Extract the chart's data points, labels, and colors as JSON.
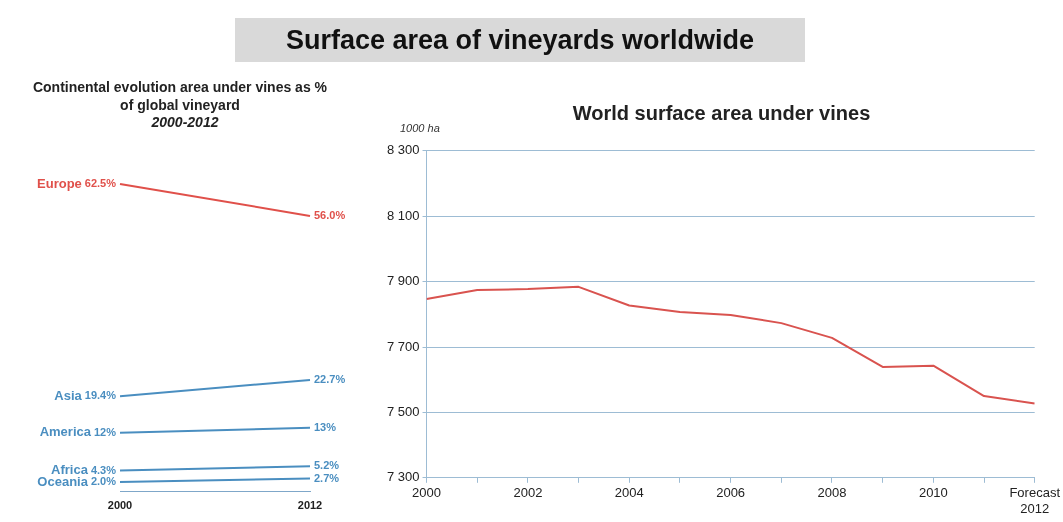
{
  "chart_data": [
    {
      "type": "other",
      "title": "Surface area of vineyards worldwide"
    },
    {
      "type": "line",
      "title": "Continental evolution  area under vines as % of global vineyard",
      "subtitle": "2000-2012",
      "categories": [
        "2000",
        "2012"
      ],
      "tick_labels": "x",
      "grid": false,
      "legend": false,
      "marker": "none",
      "series": [
        {
          "name": "Europe",
          "color": "#e0504a",
          "values": [
            62.5,
            56.0
          ],
          "value_labels": [
            "62.5%",
            "56.0%"
          ]
        },
        {
          "name": "Asia",
          "color": "#4a8ec0",
          "values": [
            19.4,
            22.7
          ],
          "value_labels": [
            "19.4%",
            "22.7%"
          ]
        },
        {
          "name": "America",
          "color": "#4a8ec0",
          "values": [
            12,
            13
          ],
          "value_labels": [
            "12%",
            "13%"
          ]
        },
        {
          "name": "Africa",
          "color": "#4a8ec0",
          "values": [
            4.3,
            5.2
          ],
          "value_labels": [
            "4.3%",
            "5.2%"
          ]
        },
        {
          "name": "Oceania",
          "color": "#4a8ec0",
          "values": [
            2.0,
            2.7
          ],
          "value_labels": [
            "2.0%",
            "2.7%"
          ]
        }
      ]
    },
    {
      "type": "line",
      "title": "World surface area under vines",
      "ylabel": "1000 ha",
      "x": [
        2000,
        2001,
        2002,
        2003,
        2004,
        2005,
        2006,
        2007,
        2008,
        2009,
        2010,
        2011,
        2012
      ],
      "values": [
        7847,
        7874,
        7877,
        7884,
        7827,
        7807,
        7798,
        7773,
        7728,
        7639,
        7643,
        7550,
        7527
      ],
      "color": "#d9534f",
      "xlim": [
        2000,
        2012
      ],
      "xticks": [
        2000,
        {
          "value": 2001,
          "label": null
        },
        2002,
        {
          "value": 2003,
          "label": null
        },
        2004,
        {
          "value": 2005,
          "label": null
        },
        2006,
        {
          "value": 2007,
          "label": null
        },
        2008,
        {
          "value": 2009,
          "label": null
        },
        2010,
        {
          "value": 2011,
          "label": null
        },
        {
          "value": 2012,
          "label": "Forecast 2012"
        }
      ],
      "ylim": [
        7300,
        8300
      ],
      "yticks": [
        {
          "value": 7300,
          "label": "7 300"
        },
        {
          "value": 7500,
          "label": "7 500"
        },
        {
          "value": 7700,
          "label": "7 700"
        },
        {
          "value": 7900,
          "label": "7 900"
        },
        {
          "value": 8100,
          "label": "8 100"
        },
        {
          "value": 8300,
          "label": "8 300"
        }
      ],
      "grid": "y",
      "legend": false,
      "marker": "none"
    }
  ]
}
